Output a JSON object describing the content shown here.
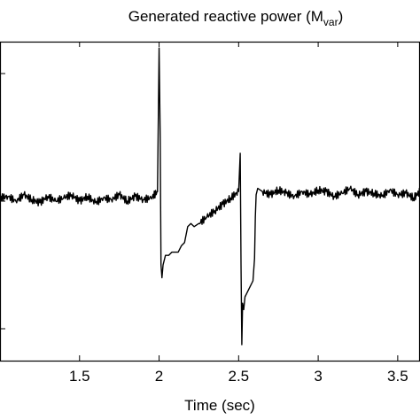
{
  "chart_data": {
    "type": "line",
    "title_main": "Generated reactive power (M",
    "title_sub": "var",
    "title_end": ")",
    "xlabel": "Time (sec)",
    "ylabel": "",
    "xlim": [
      1.0,
      3.64
    ],
    "ylim": [
      0,
      1
    ],
    "xticks": [
      1.5,
      2,
      2.5,
      3,
      3.5
    ],
    "xtick_labels": [
      "1.5",
      "2",
      "2.5",
      "3",
      "3.5"
    ],
    "grid": false,
    "series": [
      {
        "color": "#000000",
        "x": [
          1.0,
          1.05,
          1.1,
          1.15,
          1.2,
          1.25,
          1.3,
          1.35,
          1.4,
          1.45,
          1.5,
          1.55,
          1.6,
          1.65,
          1.7,
          1.75,
          1.8,
          1.85,
          1.9,
          1.95,
          1.99,
          2.0,
          2.007,
          2.012,
          2.018,
          2.025,
          2.04,
          2.06,
          2.08,
          2.1,
          2.12,
          2.14,
          2.16,
          2.18,
          2.2,
          2.22,
          2.25,
          2.3,
          2.35,
          2.4,
          2.45,
          2.5,
          2.51,
          2.515,
          2.52,
          2.525,
          2.532,
          2.54,
          2.55,
          2.57,
          2.59,
          2.6,
          2.605,
          2.61,
          2.62,
          2.65,
          2.7,
          2.75,
          2.8,
          2.85,
          2.9,
          2.95,
          3.0,
          3.05,
          3.1,
          3.15,
          3.2,
          3.25,
          3.3,
          3.35,
          3.4,
          3.45,
          3.5,
          3.55,
          3.6,
          3.64
        ],
        "y": [
          0.51,
          0.515,
          0.5,
          0.52,
          0.505,
          0.495,
          0.515,
          0.5,
          0.51,
          0.52,
          0.5,
          0.515,
          0.495,
          0.51,
          0.505,
          0.52,
          0.5,
          0.515,
          0.505,
          0.51,
          0.53,
          0.98,
          0.7,
          0.3,
          0.26,
          0.3,
          0.33,
          0.33,
          0.34,
          0.34,
          0.34,
          0.36,
          0.37,
          0.42,
          0.43,
          0.42,
          0.43,
          0.45,
          0.47,
          0.49,
          0.51,
          0.53,
          0.65,
          0.3,
          0.05,
          0.18,
          0.16,
          0.2,
          0.21,
          0.23,
          0.25,
          0.32,
          0.45,
          0.52,
          0.54,
          0.53,
          0.52,
          0.535,
          0.525,
          0.515,
          0.53,
          0.52,
          0.535,
          0.53,
          0.515,
          0.525,
          0.54,
          0.52,
          0.53,
          0.525,
          0.515,
          0.535,
          0.52,
          0.525,
          0.51,
          0.53
        ]
      }
    ]
  }
}
